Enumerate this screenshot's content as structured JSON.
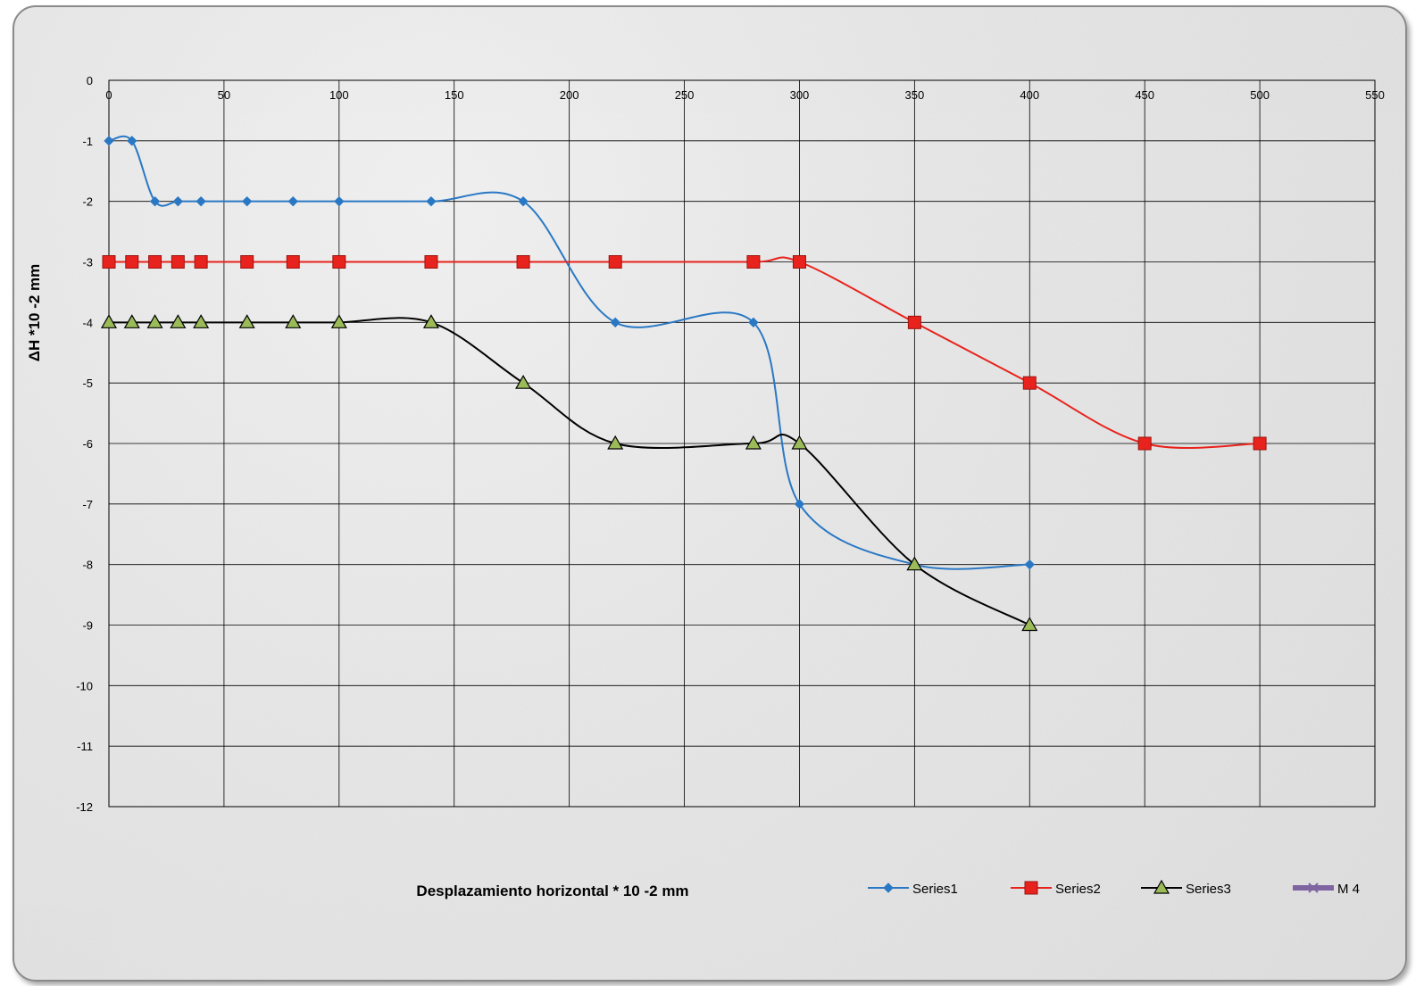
{
  "chart_data": {
    "type": "line",
    "title": "",
    "xlabel": "Desplazamiento horizontal * 10 -2 mm",
    "ylabel": "ΔH *10 -2 mm",
    "xlim": [
      0,
      550
    ],
    "ylim": [
      -12,
      0
    ],
    "x_ticks": [
      0,
      50,
      100,
      150,
      200,
      250,
      300,
      350,
      400,
      450,
      500,
      550
    ],
    "y_ticks": [
      0,
      -1,
      -2,
      -3,
      -4,
      -5,
      -6,
      -7,
      -8,
      -9,
      -10,
      -11,
      -12
    ],
    "grid": true,
    "smoothed": true,
    "legend_position": "bottom-right",
    "series": [
      {
        "name": "Series1",
        "color": "#2a78c4",
        "marker": "diamond",
        "x": [
          0,
          10,
          20,
          30,
          40,
          60,
          80,
          100,
          140,
          180,
          220,
          280,
          300,
          350,
          400
        ],
        "y": [
          -1,
          -1,
          -2,
          -2,
          -2,
          -2,
          -2,
          -2,
          -2,
          -2,
          -4,
          -4,
          -7,
          -8,
          -8
        ]
      },
      {
        "name": "Series2",
        "color": "#e8221c",
        "marker": "square",
        "x": [
          0,
          10,
          20,
          30,
          40,
          60,
          80,
          100,
          140,
          180,
          220,
          280,
          300,
          350,
          400,
          450,
          500
        ],
        "y": [
          -3,
          -3,
          -3,
          -3,
          -3,
          -3,
          -3,
          -3,
          -3,
          -3,
          -3,
          -3,
          -3,
          -4,
          -5,
          -6,
          -6
        ]
      },
      {
        "name": "Series3",
        "color": "#000000",
        "marker": "triangle",
        "marker_fill": "#9bbb59",
        "x": [
          0,
          10,
          20,
          30,
          40,
          60,
          80,
          100,
          140,
          180,
          220,
          280,
          300,
          350,
          400
        ],
        "y": [
          -4,
          -4,
          -4,
          -4,
          -4,
          -4,
          -4,
          -4,
          -4,
          -5,
          -6,
          -6,
          -6,
          -8,
          -9
        ]
      },
      {
        "name": "M 4",
        "color": "#7f64a2",
        "marker": "x",
        "x": [],
        "y": []
      }
    ]
  }
}
